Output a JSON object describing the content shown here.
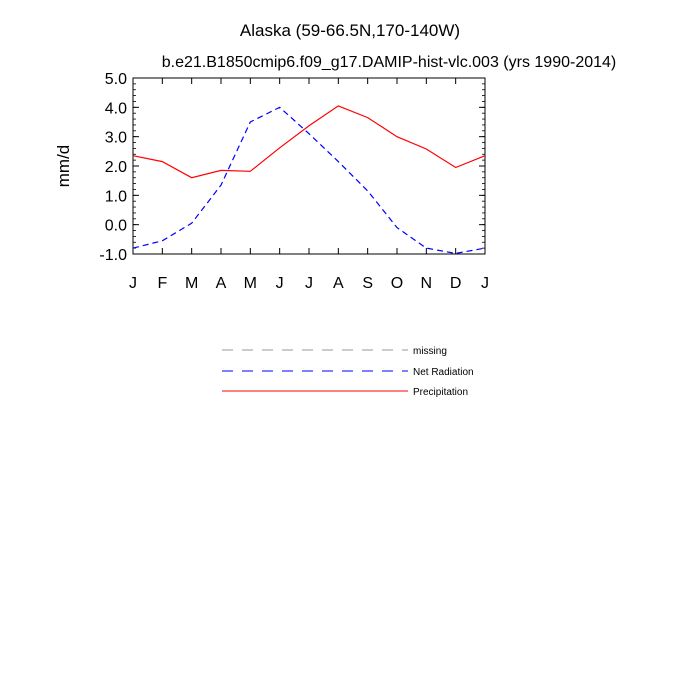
{
  "chart_data": {
    "type": "line",
    "title": "Alaska (59-66.5N,170-140W)",
    "subtitle": "b.e21.B1850cmip6.f09_g17.DAMIP-hist-vlc.003 (yrs 1990-2014)",
    "ylabel": "mm/d",
    "xlabel": "",
    "ylim": [
      -1.0,
      5.0
    ],
    "y_ticks": [
      "5.0",
      "4.0",
      "3.0",
      "2.0",
      "1.0",
      "0.0",
      "-1.0"
    ],
    "y_tick_values": [
      5,
      4,
      3,
      2,
      1,
      0,
      -1
    ],
    "categories": [
      "J",
      "F",
      "M",
      "A",
      "M",
      "J",
      "J",
      "A",
      "S",
      "O",
      "N",
      "D",
      "J"
    ],
    "series": [
      {
        "name": "Precipitation",
        "color": "#ff0000",
        "dash": "solid",
        "values": [
          2.35,
          2.15,
          1.6,
          1.85,
          1.82,
          2.62,
          3.37,
          4.05,
          3.65,
          3.0,
          2.58,
          1.95,
          2.35
        ]
      },
      {
        "name": "Net Radiation",
        "color": "#0000ff",
        "dash": "dashed",
        "values": [
          -0.8,
          -0.55,
          0.05,
          1.35,
          3.5,
          4.0,
          3.1,
          2.15,
          1.15,
          -0.1,
          -0.8,
          -0.98,
          -0.8
        ]
      }
    ],
    "legend": {
      "placement": "below",
      "entries": [
        {
          "label": "missing",
          "color": "#999999",
          "dash": "dashed"
        },
        {
          "label": "Net Radiation",
          "color": "#0000ff",
          "dash": "dashed"
        },
        {
          "label": "Precipitation",
          "color": "#ff0000",
          "dash": "solid"
        }
      ]
    }
  }
}
